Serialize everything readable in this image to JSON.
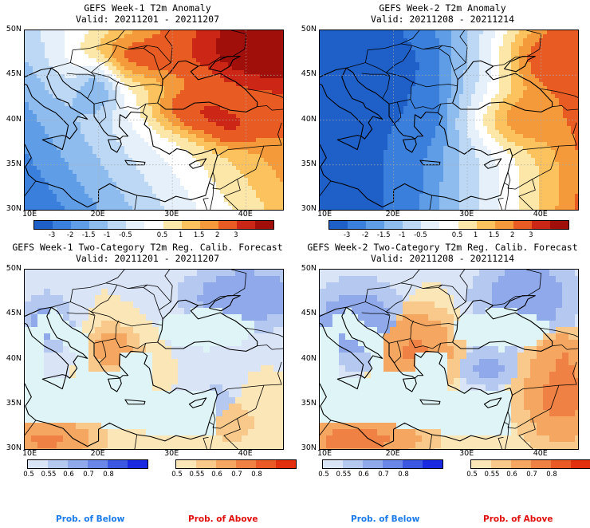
{
  "panels": [
    {
      "title": "GEFS Week-1 T2m Anomaly",
      "valid": "Valid: 20211201 - 20211207"
    },
    {
      "title": "GEFS Week-2 T2m Anomaly",
      "valid": "Valid: 20211208 - 20211214"
    },
    {
      "title": "GEFS Week-1 Two-Category T2m Reg. Calib. Forecast",
      "valid": "Valid: 20211201 - 20211207"
    },
    {
      "title": "GEFS Week-2 Two-Category T2m Reg. Calib. Forecast",
      "valid": "Valid: 20211208 - 20211214"
    }
  ],
  "lat_labels": [
    "50N",
    "45N",
    "40N",
    "35N",
    "30N"
  ],
  "lon_labels": [
    "10E",
    "20E",
    "30E",
    "40E"
  ],
  "anomaly_scale": {
    "labels": [
      "-3",
      "-2",
      "-1.5",
      "-1",
      "-0.5",
      "0.5",
      "1",
      "1.5",
      "2",
      "3"
    ],
    "colors": [
      "#1f5fc8",
      "#3a7fdc",
      "#5f9de6",
      "#8ebcef",
      "#bcd8f4",
      "#e6f0fa",
      "#ffffff",
      "#fde7a8",
      "#fbc25e",
      "#f49a3a",
      "#e85c24",
      "#cc2616",
      "#a00f0a"
    ]
  },
  "prob_below": {
    "labels": [
      "0.5",
      "0.55",
      "0.6",
      "0.7",
      "0.8"
    ],
    "colors": [
      "#d9e4f7",
      "#b4c8f0",
      "#8fa9ea",
      "#6a86e6",
      "#3c57e0",
      "#1a2ae0"
    ]
  },
  "prob_above": {
    "labels": [
      "0.5",
      "0.55",
      "0.6",
      "0.7",
      "0.8"
    ],
    "colors": [
      "#fbe6b8",
      "#f8c98a",
      "#f5a762",
      "#f08144",
      "#ea5a26",
      "#e2300e"
    ]
  },
  "legend": {
    "below": "Prob. of Below",
    "above": "Prob. of Above",
    "below_color": "#1c7be8",
    "above_color": "#e0100e"
  },
  "colors": {
    "sea_prob": "#dff4f6",
    "coast": "#000000"
  }
}
